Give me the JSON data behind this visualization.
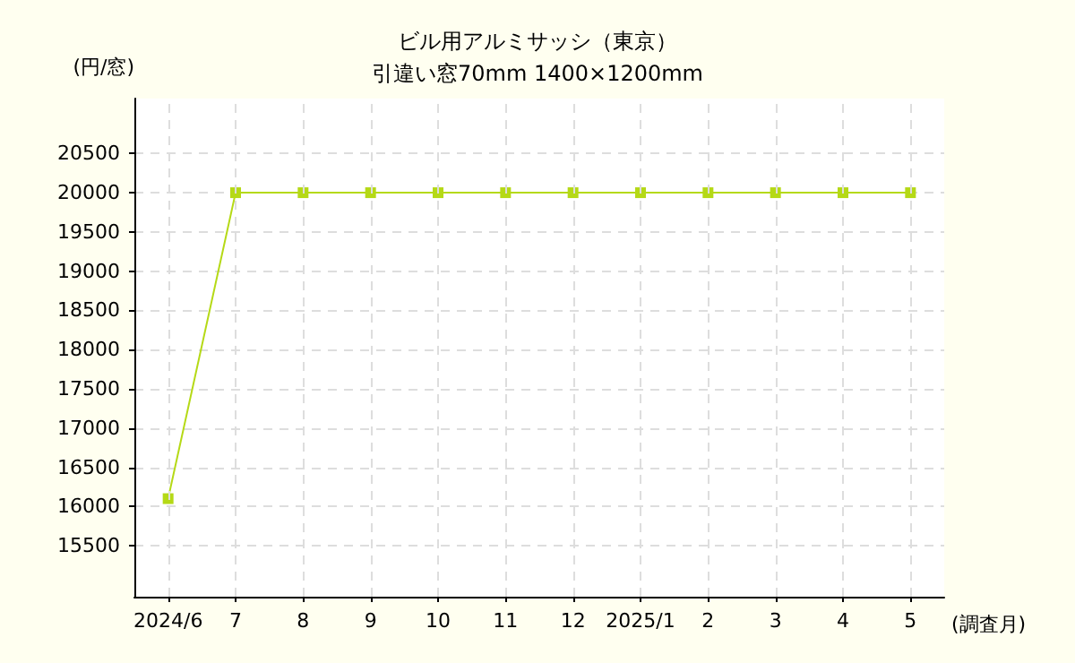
{
  "chart_data": {
    "type": "line",
    "title": "ビル用アルミサッシ（東京）",
    "subtitle": "引違い窓70mm 1400×1200mm",
    "ylabel": "(円/窓)",
    "xlabel": "(調査月)",
    "categories": [
      "2024/6",
      "7",
      "8",
      "9",
      "10",
      "11",
      "12",
      "2025/1",
      "2",
      "3",
      "4",
      "5"
    ],
    "series": [
      {
        "color": "#b5d916",
        "values": [
          16100,
          20000,
          20000,
          20000,
          20000,
          20000,
          20000,
          20000,
          20000,
          20000,
          20000,
          20000
        ]
      }
    ],
    "ylim": [
      14850,
      21200
    ],
    "yticks": [
      15500,
      16000,
      16500,
      17000,
      17500,
      18000,
      18500,
      19000,
      19500,
      20000,
      20500
    ],
    "grid": true,
    "marker": "square",
    "line_style": "solid"
  }
}
